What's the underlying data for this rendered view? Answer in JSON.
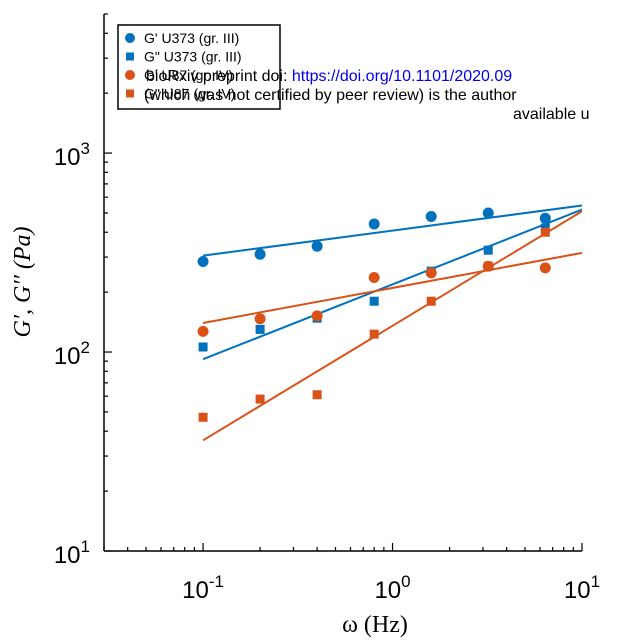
{
  "watermark": {
    "line1_prefix": "bioRxiv preprint doi: ",
    "line1_link": "https://doi.org/10.1101/2020.09",
    "line2": "(which was not certified by peer review) is the author",
    "line3": "available u"
  },
  "chart_data": {
    "type": "scatter",
    "x_scale": "log",
    "y_scale": "log",
    "xlim": [
      0.03,
      10
    ],
    "ylim": [
      10,
      5000
    ],
    "xlabel": "ω (Hz)",
    "ylabel": "G′, G′′ (Pa)",
    "x_ticks": [
      {
        "value": 0.1,
        "base": "10",
        "exp": "-1"
      },
      {
        "value": 1,
        "base": "10",
        "exp": "0"
      },
      {
        "value": 10,
        "base": "10",
        "exp": "1"
      }
    ],
    "y_ticks": [
      {
        "value": 10,
        "base": "10",
        "exp": "1"
      },
      {
        "value": 100,
        "base": "10",
        "exp": "2"
      },
      {
        "value": 1000,
        "base": "10",
        "exp": "3"
      }
    ],
    "grid": false,
    "legend_position": "top-left",
    "series": [
      {
        "name": "G' U373 (gr. III)",
        "marker": "circle",
        "color": "#0072BD",
        "x": [
          0.1,
          0.2,
          0.4,
          0.8,
          1.6,
          3.2,
          6.4
        ],
        "y": [
          285,
          310,
          340,
          440,
          480,
          500,
          470
        ],
        "fit": {
          "x": [
            0.1,
            10
          ],
          "y": [
            305,
            545
          ]
        }
      },
      {
        "name": "G\" U373 (gr. III)",
        "marker": "square",
        "color": "#0072BD",
        "x": [
          0.1,
          0.2,
          0.4,
          0.8,
          1.6,
          3.2,
          6.4
        ],
        "y": [
          106,
          130,
          148,
          180,
          255,
          325,
          420
        ],
        "fit": {
          "x": [
            0.1,
            10
          ],
          "y": [
            92,
            520
          ]
        }
      },
      {
        "name": "G' U87 (gr. IV)",
        "marker": "circle",
        "color": "#D95319",
        "x": [
          0.1,
          0.2,
          0.4,
          0.8,
          1.6,
          3.2,
          6.4
        ],
        "y": [
          127,
          147,
          152,
          237,
          250,
          270,
          265
        ],
        "fit": {
          "x": [
            0.1,
            10
          ],
          "y": [
            140,
            315
          ]
        }
      },
      {
        "name": "G\" U87 (gr. IV)",
        "marker": "square",
        "color": "#D95319",
        "x": [
          0.1,
          0.2,
          0.4,
          0.8,
          1.6,
          3.2,
          6.4
        ],
        "y": [
          47,
          58,
          61,
          123,
          180,
          270,
          400
        ],
        "fit": {
          "x": [
            0.1,
            10
          ],
          "y": [
            36,
            510
          ]
        }
      }
    ]
  }
}
